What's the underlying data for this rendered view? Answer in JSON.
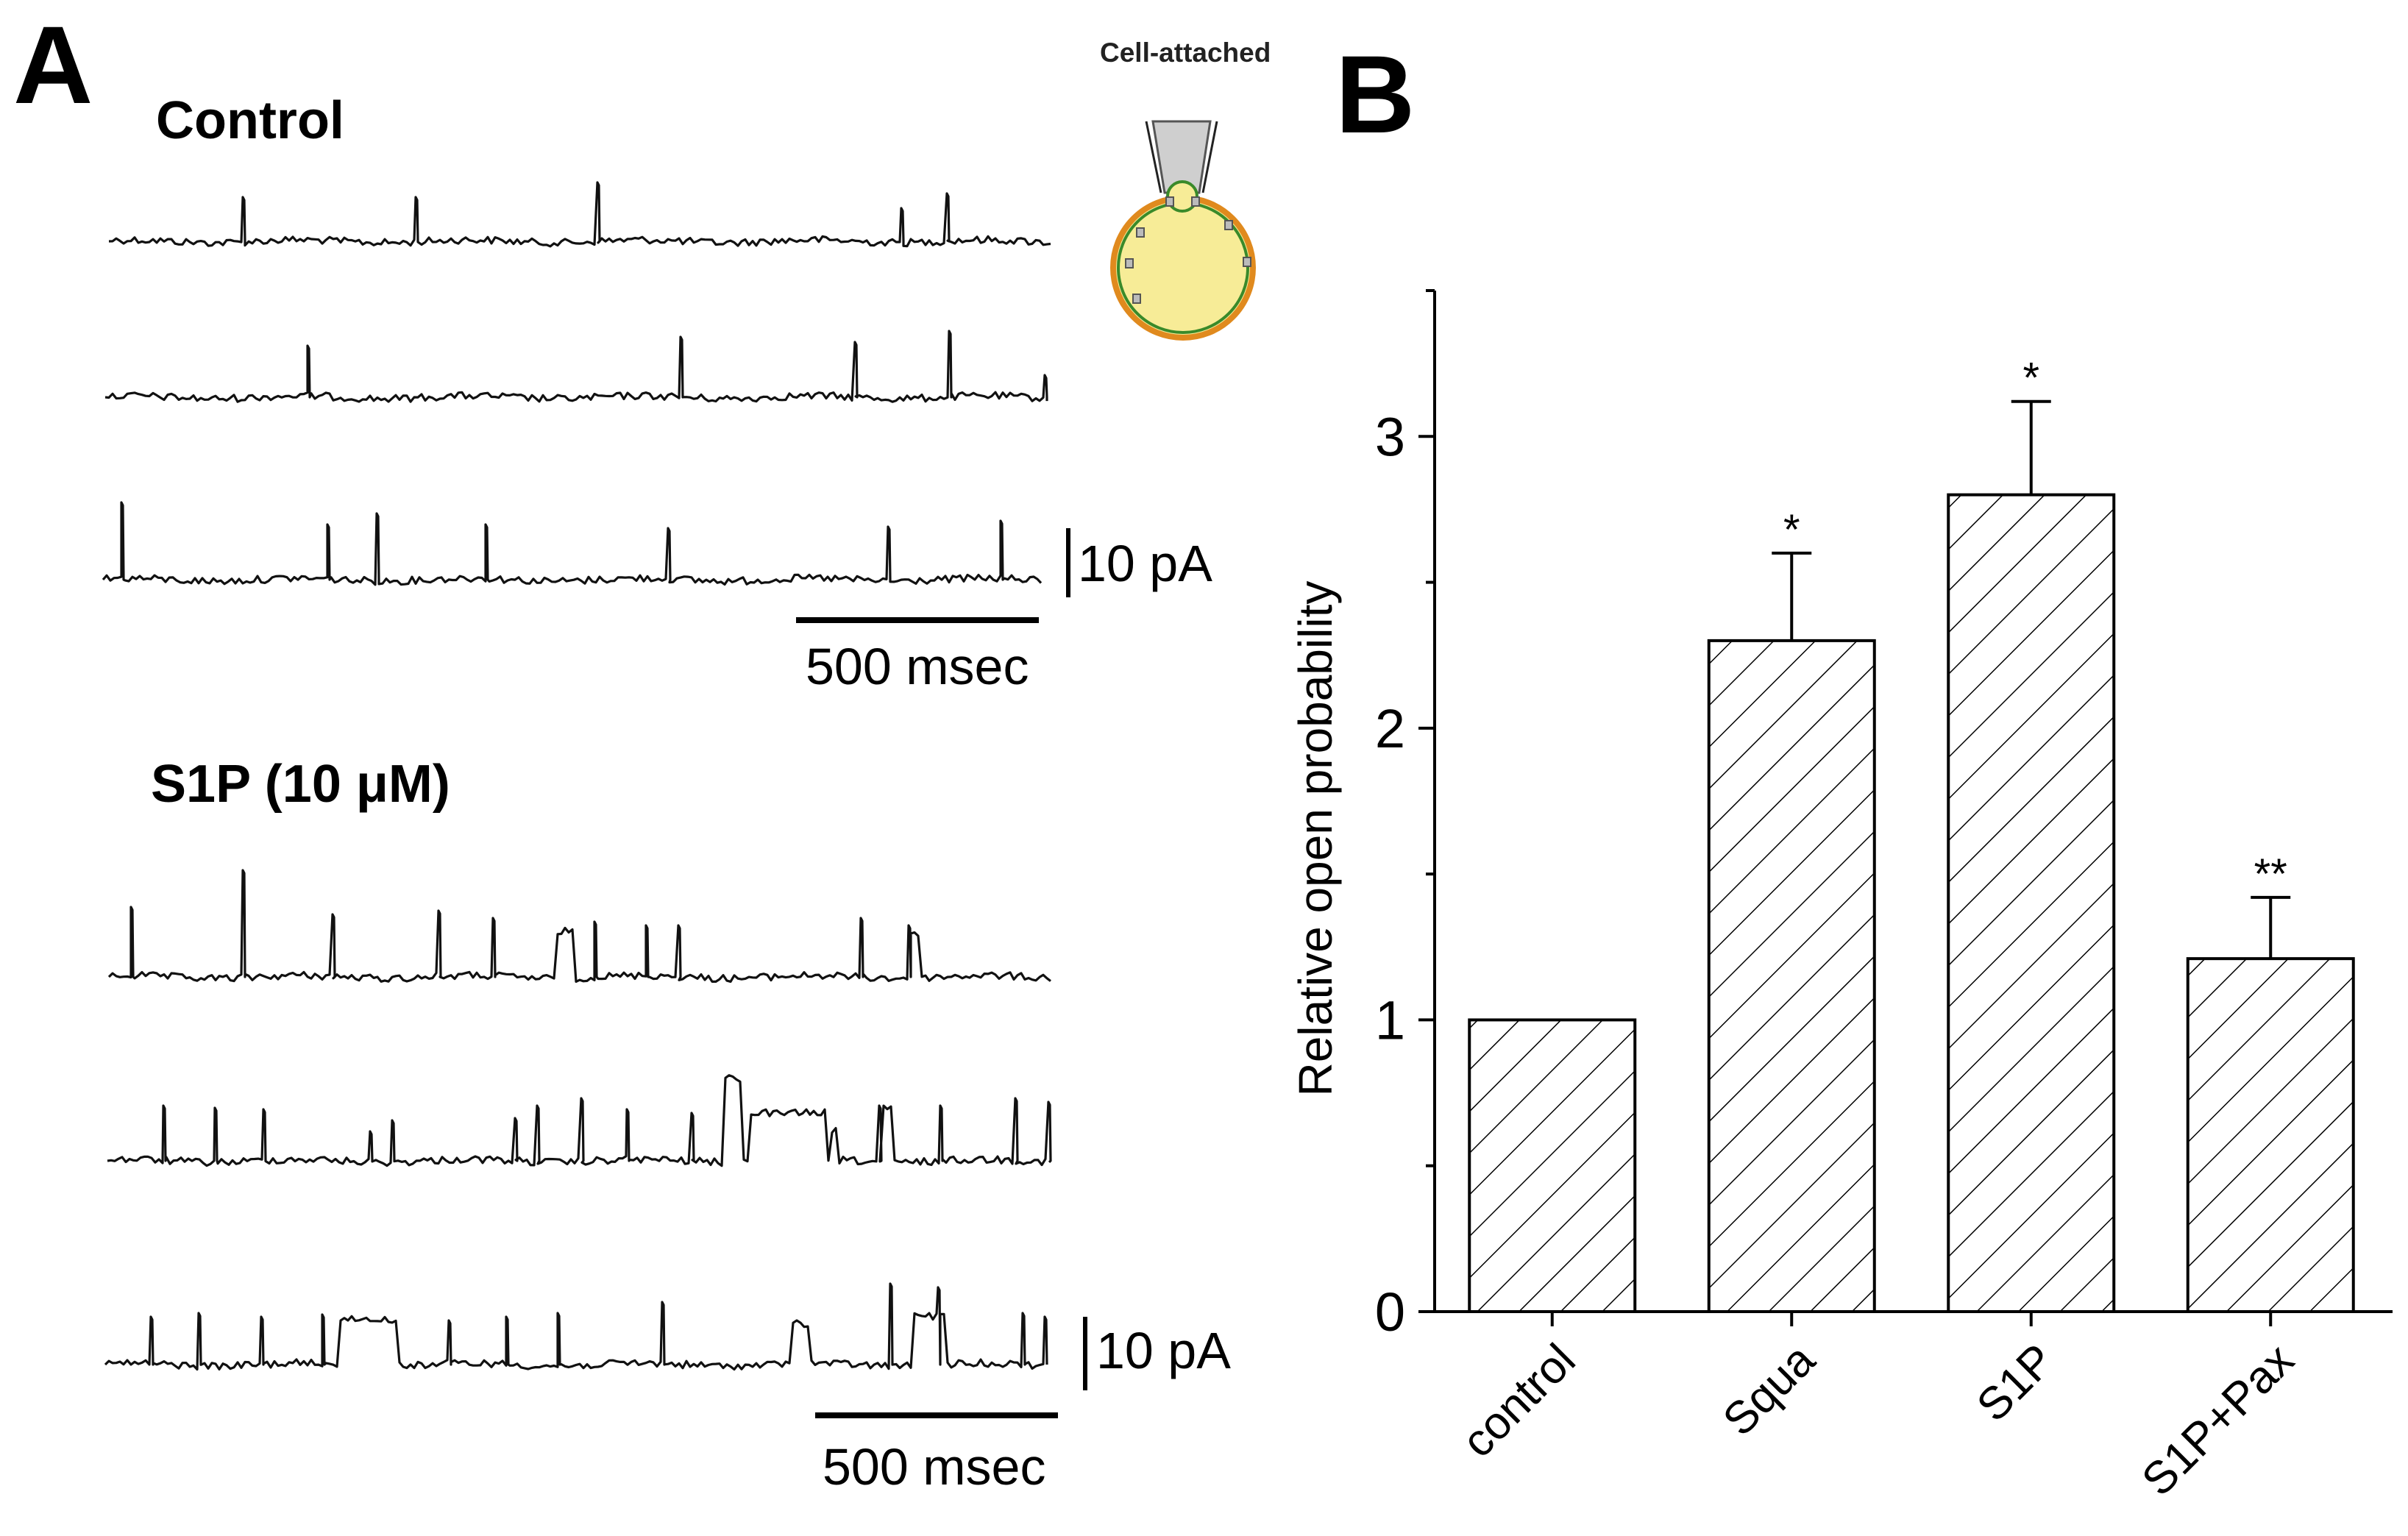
{
  "panels": {
    "a": "A",
    "b": "B"
  },
  "panel_a": {
    "control_label": "Control",
    "s1p_label": "S1P (10 μM)",
    "scale_current": "10 pA",
    "scale_time": "500 msec",
    "cell_label": "Cell-attached"
  },
  "chart_data": {
    "type": "bar",
    "pattern": "diagonal-hatch",
    "categories": [
      "control",
      "Squa",
      "S1P",
      "S1P+Pax"
    ],
    "values": [
      1.0,
      2.3,
      2.8,
      1.21
    ],
    "errors": [
      0,
      0.3,
      0.32,
      0.21
    ],
    "significance": [
      "",
      "*",
      "*",
      "**"
    ],
    "ylabel": "Relative open probability",
    "xlabel": "",
    "ylim": [
      0,
      3.5
    ],
    "yticks": [
      0,
      1,
      2,
      3
    ],
    "grid": false
  },
  "colors": {
    "ink": "#000000",
    "cell_fill": "#f7ec97",
    "cell_border_green": "#3a8a2a",
    "cell_border_orange": "#e08a1e",
    "pipette_fill": "#cfcfcf"
  }
}
